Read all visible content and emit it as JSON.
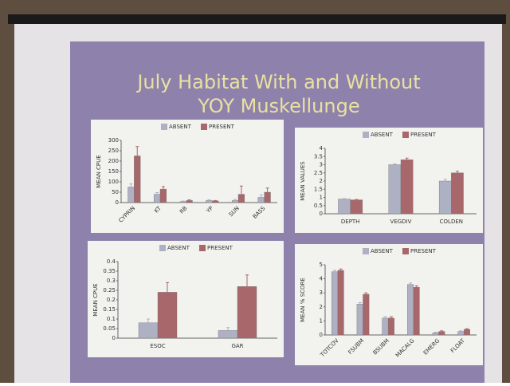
{
  "slide": {
    "title_lines": [
      "July Habitat With and Without",
      "YOY Muskellunge"
    ]
  },
  "chart_data": [
    {
      "type": "bar",
      "ylabel": "MEAN CPUE",
      "categories": [
        "CYPRIN",
        "KT",
        "RB",
        "YP",
        "SUN",
        "BASS"
      ],
      "series": [
        {
          "name": "ABSENT",
          "color": "#aeb0c4",
          "values": [
            75,
            40,
            5,
            10,
            10,
            25
          ],
          "errors": [
            15,
            8,
            2,
            3,
            5,
            12
          ]
        },
        {
          "name": "PRESENT",
          "color": "#a8676a",
          "values": [
            225,
            65,
            10,
            8,
            40,
            50
          ],
          "errors": [
            45,
            12,
            3,
            2,
            40,
            20
          ]
        }
      ],
      "ylim": [
        0,
        300
      ],
      "yticks": [
        0,
        50,
        100,
        150,
        200,
        250,
        300
      ]
    },
    {
      "type": "bar",
      "ylabel": "MEAN VALUES",
      "categories": [
        "DEPTH",
        "VEGDIV",
        "COLDEN"
      ],
      "series": [
        {
          "name": "ABSENT",
          "color": "#aeb0c4",
          "values": [
            0.9,
            3.0,
            2.0
          ],
          "errors": [
            0.02,
            0.05,
            0.1
          ]
        },
        {
          "name": "PRESENT",
          "color": "#a8676a",
          "values": [
            0.85,
            3.3,
            2.5
          ],
          "errors": [
            0.02,
            0.1,
            0.1
          ]
        }
      ],
      "ylim": [
        0,
        4
      ],
      "yticks": [
        0,
        0.5,
        1,
        1.5,
        2,
        2.5,
        3,
        3.5,
        4
      ]
    },
    {
      "type": "bar",
      "ylabel": "MEAN CPUE",
      "categories": [
        "ESOC",
        "GAR"
      ],
      "series": [
        {
          "name": "ABSENT",
          "color": "#aeb0c4",
          "values": [
            0.08,
            0.04
          ],
          "errors": [
            0.02,
            0.015
          ]
        },
        {
          "name": "PRESENT",
          "color": "#a8676a",
          "values": [
            0.24,
            0.27
          ],
          "errors": [
            0.05,
            0.06
          ]
        }
      ],
      "ylim": [
        0,
        0.4
      ],
      "yticks": [
        0,
        0.05,
        0.1,
        0.15,
        0.2,
        0.25,
        0.3,
        0.35,
        0.4
      ]
    },
    {
      "type": "bar",
      "ylabel": "MEAN % SCORE",
      "categories": [
        "TOTCOV",
        "FSUBM",
        "BSUBM",
        "MACALG",
        "EMERG",
        "FLOAT"
      ],
      "series": [
        {
          "name": "ABSENT",
          "color": "#aeb0c4",
          "values": [
            4.5,
            2.2,
            1.2,
            3.6,
            0.15,
            0.25
          ],
          "errors": [
            0.1,
            0.1,
            0.1,
            0.1,
            0.05,
            0.05
          ]
        },
        {
          "name": "PRESENT",
          "color": "#a8676a",
          "values": [
            4.6,
            2.9,
            1.2,
            3.4,
            0.25,
            0.4
          ],
          "errors": [
            0.1,
            0.1,
            0.1,
            0.1,
            0.05,
            0.05
          ]
        }
      ],
      "ylim": [
        0,
        5
      ],
      "yticks": [
        0,
        1,
        2,
        3,
        4,
        5
      ]
    }
  ]
}
